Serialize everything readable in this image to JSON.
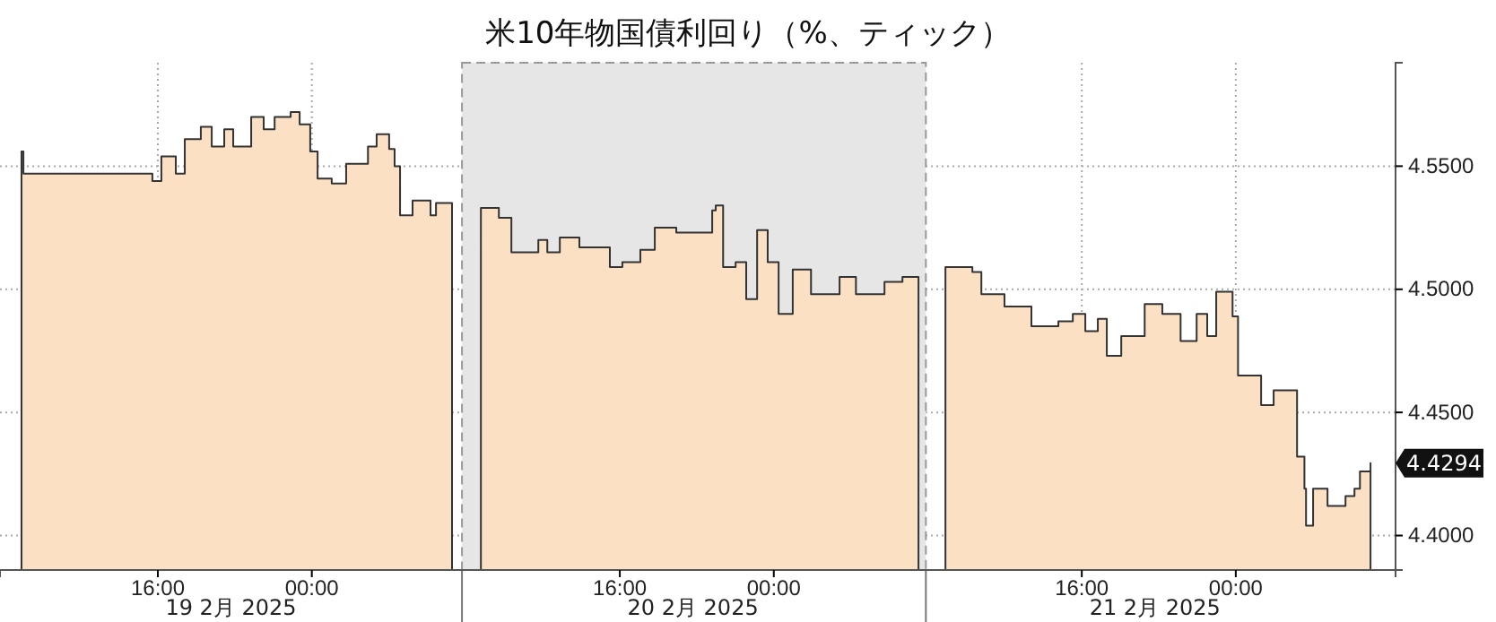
{
  "chart_data": {
    "type": "area",
    "title": "米10年物国債利回り（%、ティック）",
    "x": [
      "2025-02-19T08:55",
      "2025-02-19T09:01",
      "2025-02-19T15:32",
      "2025-02-19T15:43",
      "2025-02-19T16:11",
      "2025-02-19T16:56",
      "2025-02-19T17:24",
      "2025-02-19T18:14",
      "2025-02-19T18:48",
      "2025-02-19T19:27",
      "2025-02-19T19:55",
      "2025-02-19T20:51",
      "2025-02-19T21:30",
      "2025-02-19T22:04",
      "2025-02-19T22:54",
      "2025-02-19T23:22",
      "2025-02-19T23:55",
      "2025-02-20T00:18",
      "2025-02-20T01:02",
      "2025-02-20T01:47",
      "2025-02-20T02:55",
      "2025-02-20T03:22",
      "2025-02-20T04:01",
      "2025-02-20T04:18",
      "2025-02-20T04:35",
      "2025-02-20T05:14",
      "2025-02-20T06:10",
      "2025-02-20T06:27",
      "2025-02-20T07:17",
      "2025-02-20T07:48",
      "2025-02-20T08:47",
      "2025-02-20T09:43",
      "2025-02-20T10:22",
      "2025-02-20T11:46",
      "2025-02-20T12:14",
      "2025-02-20T12:53",
      "2025-02-20T13:54",
      "2025-02-20T15:29",
      "2025-02-20T16:08",
      "2025-02-20T17:04",
      "2025-02-20T17:49",
      "2025-02-20T18:56",
      "2025-02-20T20:48",
      "2025-02-20T20:59",
      "2025-02-20T21:22",
      "2025-02-20T22:01",
      "2025-02-20T22:34",
      "2025-02-20T23:08",
      "2025-02-20T23:41",
      "2025-02-21T00:15",
      "2025-02-21T00:59",
      "2025-02-21T01:56",
      "2025-02-21T03:25",
      "2025-02-21T04:16",
      "2025-02-21T05:11",
      "2025-02-21T05:45",
      "2025-02-21T06:41",
      "2025-02-21T07:31",
      "2025-02-21T08:12",
      "2025-02-21T08:55",
      "2025-02-21T10:19",
      "2025-02-21T10:47",
      "2025-02-21T11:59",
      "2025-02-21T13:23",
      "2025-02-21T14:47",
      "2025-02-21T15:32",
      "2025-02-21T16:11",
      "2025-02-21T16:50",
      "2025-02-21T17:18",
      "2025-02-21T18:03",
      "2025-02-21T19:16",
      "2025-02-21T20:11",
      "2025-02-21T21:08",
      "2025-02-21T21:58",
      "2025-02-21T22:31",
      "2025-02-21T22:59",
      "2025-02-21T23:50",
      "2025-02-22T00:07",
      "2025-02-22T01:19",
      "2025-02-22T01:58",
      "2025-02-22T02:37",
      "2025-02-22T03:11",
      "2025-02-22T03:34",
      "2025-02-22T03:39",
      "2025-02-22T04:01",
      "2025-02-22T04:46",
      "2025-02-22T05:42",
      "2025-02-22T06:10",
      "2025-02-22T06:27",
      "2025-02-22T07:00"
    ],
    "series": [
      {
        "color": "#fbe0c4",
        "values": [
          4.556,
          4.547,
          4.547,
          4.544,
          4.554,
          4.547,
          4.561,
          4.566,
          4.558,
          4.565,
          4.558,
          4.57,
          4.565,
          4.57,
          4.572,
          4.567,
          4.556,
          4.545,
          4.543,
          4.551,
          4.558,
          4.563,
          4.557,
          4.55,
          4.53,
          4.536,
          4.53,
          4.535,
          4.533,
          null,
          4.533,
          4.529,
          4.515,
          4.52,
          4.515,
          4.521,
          4.517,
          4.509,
          4.511,
          4.516,
          4.525,
          4.523,
          4.532,
          4.534,
          4.509,
          4.511,
          4.496,
          4.524,
          4.511,
          4.49,
          4.508,
          4.498,
          4.505,
          4.498,
          4.498,
          4.503,
          4.505,
          4.504,
          null,
          4.509,
          4.507,
          4.498,
          4.493,
          4.485,
          4.487,
          4.49,
          4.483,
          4.488,
          4.473,
          4.481,
          4.494,
          4.49,
          4.479,
          4.49,
          4.481,
          4.499,
          4.489,
          4.465,
          4.453,
          4.459,
          4.459,
          4.432,
          4.419,
          4.404,
          4.419,
          4.412,
          4.416,
          4.419,
          4.426,
          4.4294
        ]
      }
    ],
    "xlim": [
      "2025-02-19T07:48",
      "2025-02-22T08:18"
    ],
    "ylim": [
      4.386,
      4.592
    ],
    "xticks": [
      {
        "value": "2025-02-19T16:00",
        "label": "16:00"
      },
      {
        "value": "2025-02-20T00:00",
        "label": "00:00"
      },
      {
        "value": "2025-02-20T16:00",
        "label": "16:00"
      },
      {
        "value": "2025-02-21T00:00",
        "label": "00:00"
      },
      {
        "value": "2025-02-21T16:00",
        "label": "16:00"
      },
      {
        "value": "2025-02-22T00:00",
        "label": "00:00"
      }
    ],
    "yticks": [
      {
        "value": 4.4,
        "label": "4.4000"
      },
      {
        "value": 4.45,
        "label": "4.4500"
      },
      {
        "value": 4.5,
        "label": "4.5000"
      },
      {
        "value": 4.55,
        "label": "4.5500"
      }
    ],
    "bands": [
      {
        "axis": "x",
        "from": "2025-02-20T07:48",
        "to": "2025-02-21T07:54",
        "color": "#e6e6e6"
      }
    ],
    "annotations": [
      "4.4294",
      "19 2月 2025",
      "20 2月 2025",
      "21 2月 2025"
    ],
    "grid": true,
    "line_style": "solid"
  }
}
